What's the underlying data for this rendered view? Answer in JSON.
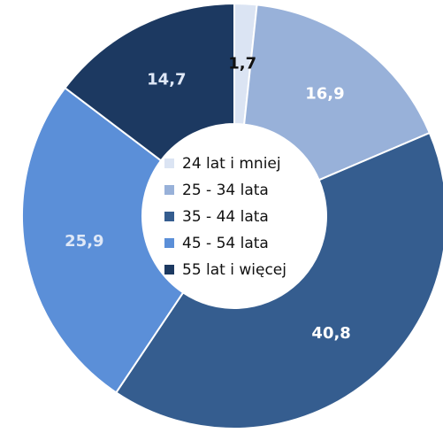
{
  "chart_data": {
    "type": "pie",
    "donut": true,
    "title": "",
    "legend_position": "center",
    "slices": [
      {
        "label": "24 lat i mniej",
        "value": 1.7,
        "value_label": "1,7",
        "color": "#dbe4f3",
        "label_color": "#111111"
      },
      {
        "label": "25 - 34 lata",
        "value": 16.9,
        "value_label": "16,9",
        "color": "#98b1d9",
        "label_color": "#ffffff"
      },
      {
        "label": "35 - 44 lata",
        "value": 40.8,
        "value_label": "40,8",
        "color": "#355d8f",
        "label_color": "#ffffff"
      },
      {
        "label": "45 - 54 lata",
        "value": 25.9,
        "value_label": "25,9",
        "color": "#5b8fd8",
        "label_color": "#dfe8f7"
      },
      {
        "label": "55 lat i więcej",
        "value": 14.7,
        "value_label": "14,7",
        "color": "#1c3961",
        "label_color": "#dfe8f7"
      }
    ]
  }
}
